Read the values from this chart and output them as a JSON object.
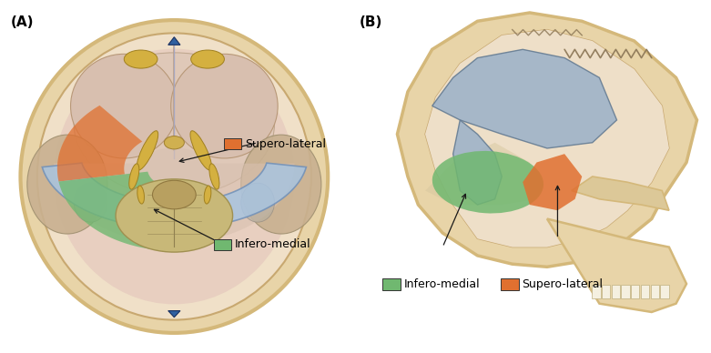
{
  "figure_label_A": "(A)",
  "figure_label_B": "(B)",
  "bg_color": "#ffffff",
  "skull_outer_color": "#d4b87a",
  "skull_bone_color": "#e8d4a8",
  "skull_inner_color": "#f2e8d0",
  "brain_bg_color": "#e8cfc0",
  "frontal_color": "#ddc0b0",
  "temporal_color": "#cdb898",
  "blue_tentorium_color": "#a8c4e0",
  "blue_tentorium_edge": "#7090b8",
  "orange_color": "#e07030",
  "green_color": "#70b870",
  "yellow_nerve_color": "#d4b040",
  "yellow_nerve_edge": "#a08020",
  "cerebellum_color": "#c8b878",
  "brainstem_color": "#b8a060",
  "marker_blue": "#3060a0",
  "gray_sinus_color": "#9ab0c8",
  "gray_sinus_edge": "#607890",
  "label_fontsize": 9,
  "panel_label_fontsize": 11,
  "legend_green_text": "Infero-medial",
  "legend_orange_text": "Supero-lateral",
  "legend_green_color": "#70b870",
  "legend_orange_color": "#e07030",
  "arrow_color": "#1a1a1a",
  "figsize": [
    7.81,
    3.88
  ],
  "dpi": 100
}
